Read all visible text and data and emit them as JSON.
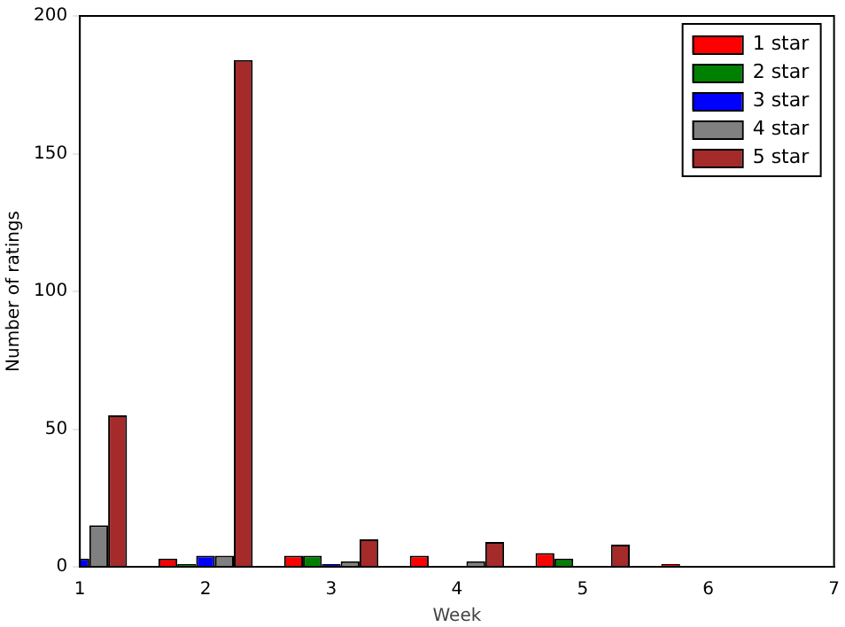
{
  "chart_data": {
    "type": "bar",
    "xlabel": "Week",
    "ylabel": "Number of ratings",
    "x": [
      1,
      2,
      3,
      4,
      5,
      6
    ],
    "series": [
      {
        "name": "1 star",
        "color": "#ff0000",
        "values": [
          null,
          3,
          4,
          4,
          5,
          1
        ]
      },
      {
        "name": "2 star",
        "color": "#008000",
        "values": [
          null,
          1,
          4,
          0,
          3,
          0
        ]
      },
      {
        "name": "3 star",
        "color": "#0000ff",
        "values": [
          3,
          4,
          1,
          0,
          0,
          0
        ]
      },
      {
        "name": "4 star",
        "color": "#808080",
        "values": [
          15,
          4,
          2,
          2,
          0,
          0
        ]
      },
      {
        "name": "5 star",
        "color": "#a52a2a",
        "values": [
          55,
          184,
          10,
          9,
          8,
          0
        ]
      }
    ],
    "xlim": [
      1,
      7
    ],
    "xticks": [
      1,
      2,
      3,
      4,
      5,
      6,
      7
    ],
    "ylim": [
      0,
      200
    ],
    "yticks": [
      0,
      50,
      100,
      150,
      200
    ],
    "grid": false,
    "legend": "top right"
  }
}
